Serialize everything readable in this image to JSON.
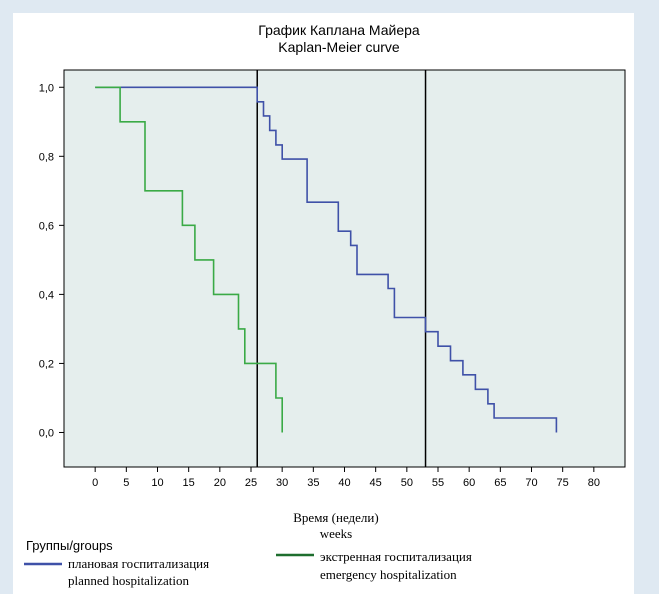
{
  "chart_data": {
    "type": "line",
    "title": "График Каплана Майера",
    "subtitle": "Kaplan-Meier curve",
    "xlabel": "Время (недели)",
    "xlabel_sub": "weeks",
    "xlim": [
      -5,
      85
    ],
    "ylim": [
      -0.1,
      1.05
    ],
    "xticks": [
      "0",
      "5",
      "10",
      "15",
      "20",
      "25",
      "30",
      "35",
      "40",
      "45",
      "50",
      "55",
      "60",
      "65",
      "70",
      "75",
      "80"
    ],
    "yticks": [
      "0,0",
      "0,2",
      "0,4",
      "0,6",
      "0,8",
      "1,0"
    ],
    "vertical_lines": [
      26,
      53
    ],
    "legend_title": "Группы/groups",
    "legend_position": "bottom",
    "series": [
      {
        "name": "плановая госпитализация",
        "name_en": "planned hospitalization",
        "color": "#3f51a8",
        "step_points": [
          [
            0,
            1.0
          ],
          [
            26,
            1.0
          ],
          [
            26,
            0.958
          ],
          [
            27,
            0.958
          ],
          [
            27,
            0.917
          ],
          [
            28,
            0.917
          ],
          [
            28,
            0.875
          ],
          [
            29,
            0.875
          ],
          [
            29,
            0.833
          ],
          [
            30,
            0.833
          ],
          [
            30,
            0.792
          ],
          [
            34,
            0.792
          ],
          [
            34,
            0.667
          ],
          [
            39,
            0.667
          ],
          [
            39,
            0.583
          ],
          [
            41,
            0.583
          ],
          [
            41,
            0.542
          ],
          [
            42,
            0.542
          ],
          [
            42,
            0.458
          ],
          [
            47,
            0.458
          ],
          [
            47,
            0.417
          ],
          [
            48,
            0.417
          ],
          [
            48,
            0.333
          ],
          [
            53,
            0.333
          ],
          [
            53,
            0.292
          ],
          [
            55,
            0.292
          ],
          [
            55,
            0.25
          ],
          [
            57,
            0.25
          ],
          [
            57,
            0.208
          ],
          [
            59,
            0.208
          ],
          [
            59,
            0.167
          ],
          [
            61,
            0.167
          ],
          [
            61,
            0.125
          ],
          [
            63,
            0.125
          ],
          [
            63,
            0.083
          ],
          [
            64,
            0.083
          ],
          [
            64,
            0.042
          ],
          [
            65,
            0.042
          ],
          [
            74,
            0.042
          ],
          [
            74,
            0.0
          ]
        ]
      },
      {
        "name": "экстренная госпитализация",
        "name_en": "emergency hospitalization",
        "color": "#3aaa46",
        "legend_color": "#1e6e2e",
        "step_points": [
          [
            0,
            1.0
          ],
          [
            4,
            1.0
          ],
          [
            4,
            0.9
          ],
          [
            8,
            0.9
          ],
          [
            8,
            0.7
          ],
          [
            14,
            0.7
          ],
          [
            14,
            0.6
          ],
          [
            16,
            0.6
          ],
          [
            16,
            0.5
          ],
          [
            19,
            0.5
          ],
          [
            19,
            0.4
          ],
          [
            23,
            0.4
          ],
          [
            23,
            0.3
          ],
          [
            24,
            0.3
          ],
          [
            24,
            0.2
          ],
          [
            29,
            0.2
          ],
          [
            29,
            0.1
          ],
          [
            30,
            0.1
          ],
          [
            30,
            0.0
          ]
        ]
      }
    ],
    "colors": {
      "plot_bg": "#e5eeed",
      "frame": "#000000",
      "page_bg": "#dfe9f2"
    }
  }
}
